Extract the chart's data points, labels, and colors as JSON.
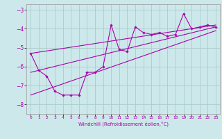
{
  "xlabel": "Windchill (Refroidissement éolien,°C)",
  "background_color": "#cce8ea",
  "grid_color": "#aacccc",
  "line_color": "#aa00aa",
  "xlim": [
    -0.5,
    23.5
  ],
  "ylim": [
    -8.5,
    -2.7
  ],
  "yticks": [
    -8,
    -7,
    -6,
    -5,
    -4,
    -3
  ],
  "xticks": [
    0,
    1,
    2,
    3,
    4,
    5,
    6,
    7,
    8,
    9,
    10,
    11,
    12,
    13,
    14,
    15,
    16,
    17,
    18,
    19,
    20,
    21,
    22,
    23
  ],
  "data_x": [
    0,
    1,
    2,
    3,
    4,
    5,
    6,
    7,
    8,
    9,
    10,
    11,
    12,
    13,
    14,
    15,
    16,
    17,
    18,
    19,
    20,
    21,
    22,
    23
  ],
  "data_y": [
    -5.3,
    -6.2,
    -6.5,
    -7.3,
    -7.5,
    -7.5,
    -7.5,
    -6.3,
    -6.3,
    -6.0,
    -3.8,
    -5.1,
    -5.2,
    -3.9,
    -4.2,
    -4.3,
    -4.2,
    -4.4,
    -4.3,
    -3.2,
    -4.0,
    -3.9,
    -3.8,
    -3.9
  ],
  "line1_x": [
    0,
    23
  ],
  "line1_y": [
    -5.3,
    -3.8
  ],
  "line2_x": [
    0,
    23
  ],
  "line2_y": [
    -6.3,
    -3.9
  ],
  "line3_x": [
    0,
    23
  ],
  "line3_y": [
    -7.5,
    -4.1
  ]
}
